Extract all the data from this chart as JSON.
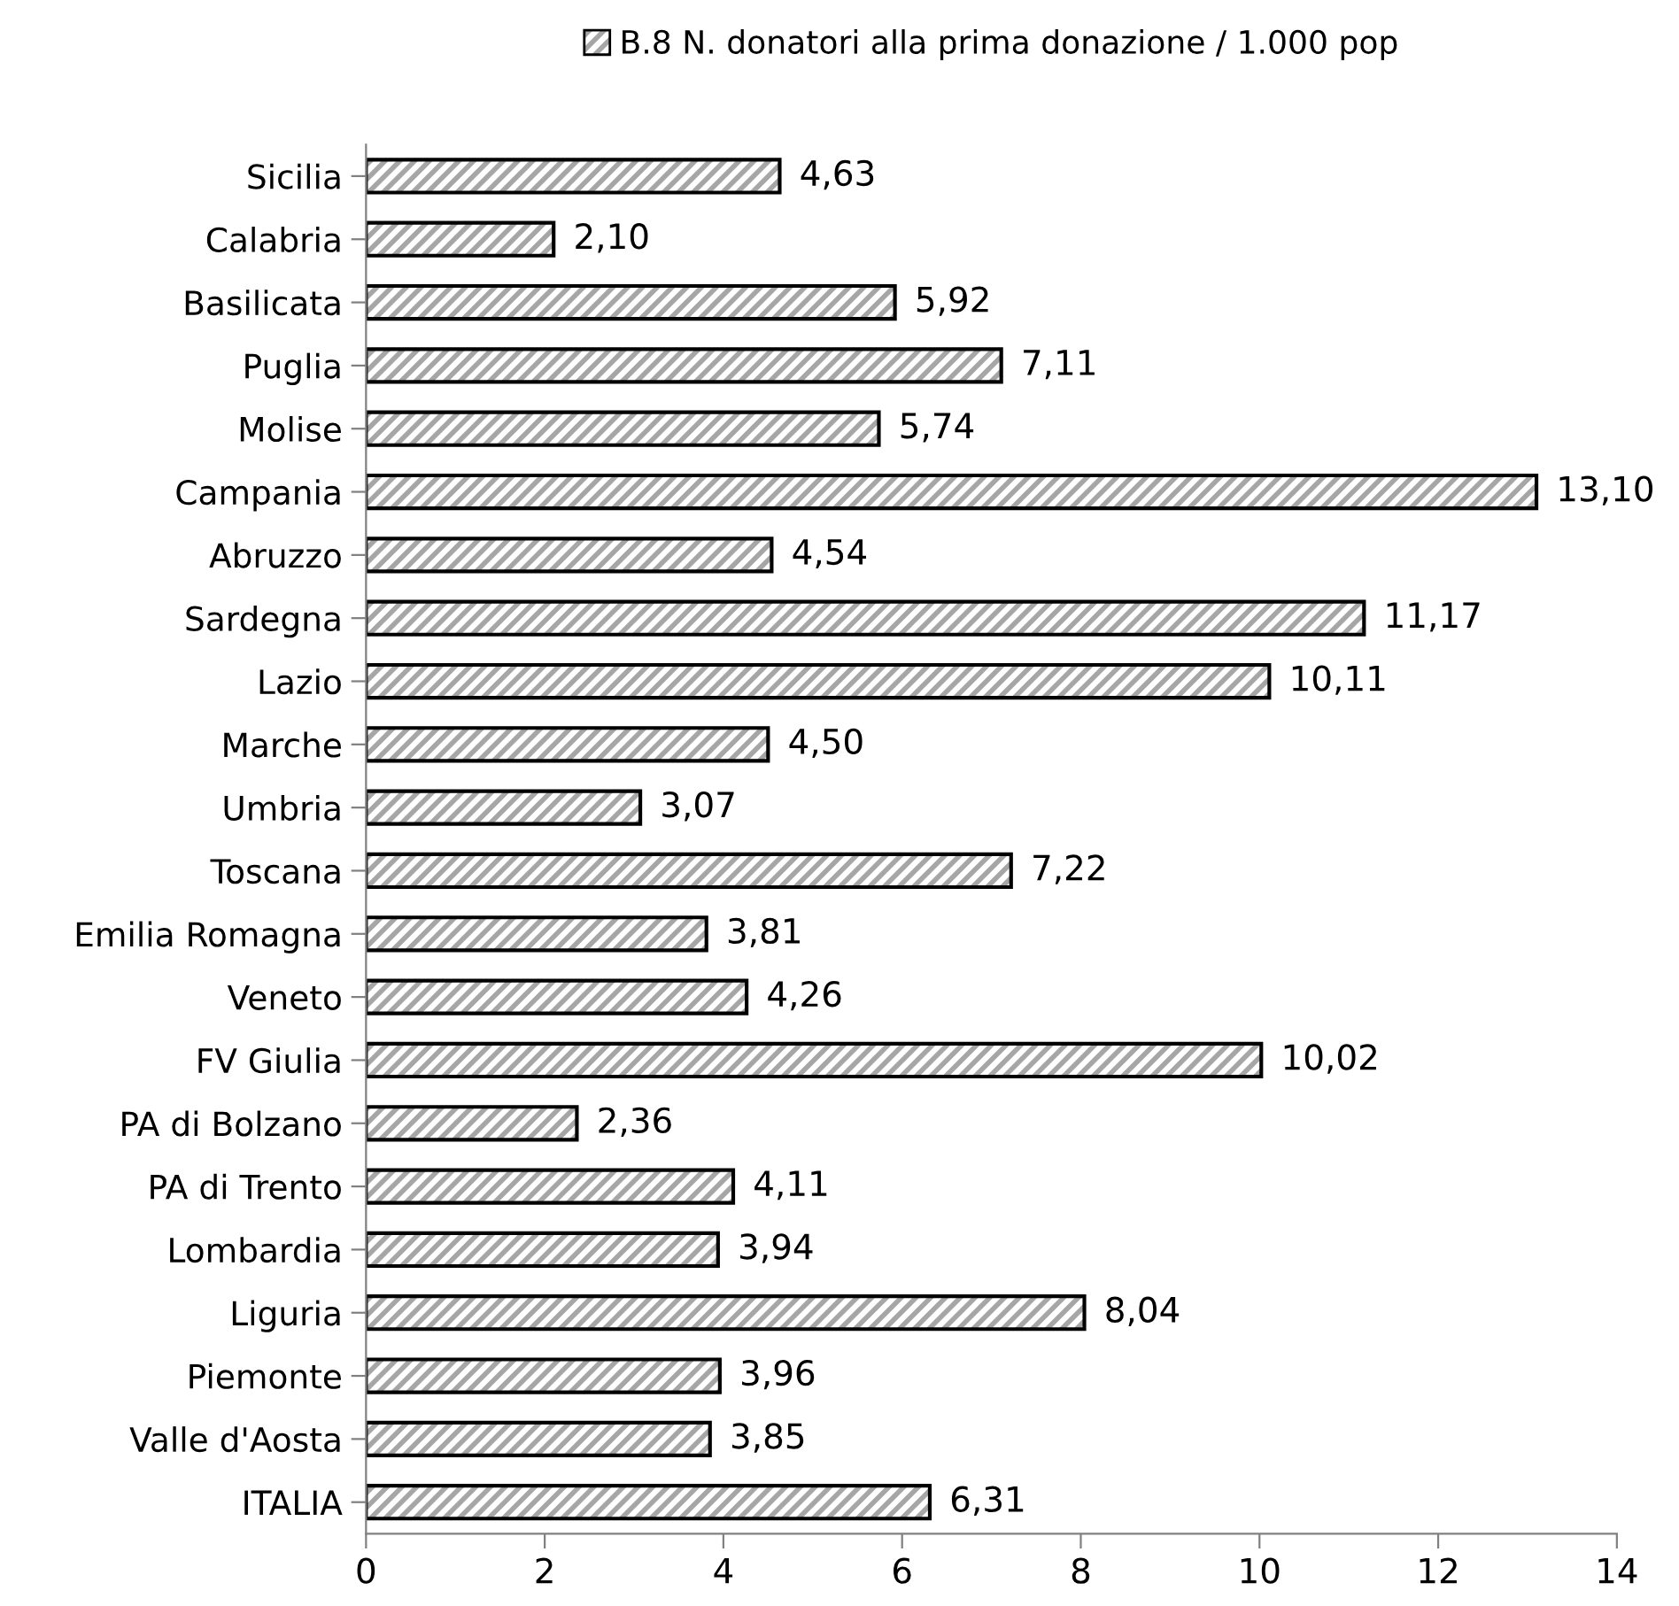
{
  "chart_data": {
    "type": "bar",
    "orientation": "horizontal",
    "categories": [
      "Sicilia",
      "Calabria",
      "Basilicata",
      "Puglia",
      "Molise",
      "Campania",
      "Abruzzo",
      "Sardegna",
      "Lazio",
      "Marche",
      "Umbria",
      "Toscana",
      "Emilia Romagna",
      "Veneto",
      "FV Giulia",
      "PA di Bolzano",
      "PA di Trento",
      "Lombardia",
      "Liguria",
      "Piemonte",
      "Valle d'Aosta",
      "ITALIA"
    ],
    "series": [
      {
        "name": "B.8 N. donatori alla prima donazione / 1.000 pop",
        "color": "#000000",
        "values": [
          4.63,
          2.1,
          5.92,
          7.11,
          5.74,
          13.1,
          4.54,
          11.17,
          10.11,
          4.5,
          3.07,
          7.22,
          3.81,
          4.26,
          10.02,
          2.36,
          4.11,
          3.94,
          8.04,
          3.96,
          3.85,
          6.31
        ],
        "value_labels": [
          "4,63",
          "2,10",
          "5,92",
          "7,11",
          "5,74",
          "13,10",
          "4,54",
          "11,17",
          "10,11",
          "4,50",
          "3,07",
          "7,22",
          "3,81",
          "4,26",
          "10,02",
          "2,36",
          "4,11",
          "3,94",
          "8,04",
          "3,96",
          "3,85",
          "6,31"
        ]
      }
    ],
    "xlim": [
      0,
      14
    ],
    "xticks": [
      0,
      2,
      4,
      6,
      8,
      10,
      12,
      14
    ],
    "grid": false,
    "legend": "top"
  }
}
